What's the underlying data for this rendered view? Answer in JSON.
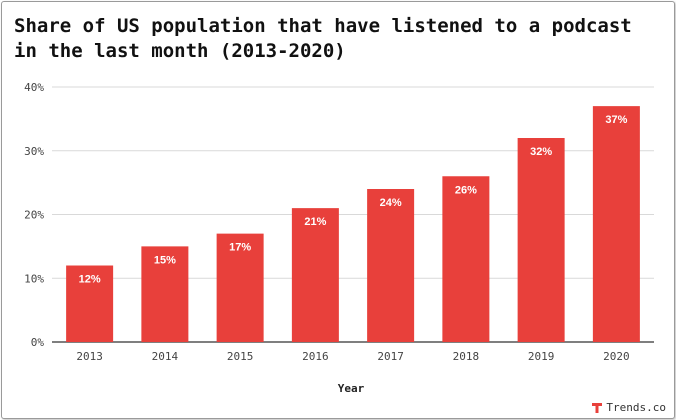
{
  "title": "Share of US population that have listened to a podcast in the last month (2013-2020)",
  "brand": {
    "name": "Trends.co",
    "logo_icon": "trends-logo-icon",
    "color": "#e8403b"
  },
  "colors": {
    "bar": "#e8403b",
    "grid": "#d9d9d9",
    "axis": "#333333"
  },
  "chart_data": {
    "type": "bar",
    "categories": [
      "2013",
      "2014",
      "2015",
      "2016",
      "2017",
      "2018",
      "2019",
      "2020"
    ],
    "values": [
      12,
      15,
      17,
      21,
      24,
      26,
      32,
      37
    ],
    "data_labels": [
      "12%",
      "15%",
      "17%",
      "21%",
      "24%",
      "26%",
      "32%",
      "37%"
    ],
    "title": "Share of US population that have listened to a podcast in the last month (2013-2020)",
    "xlabel": "Year",
    "ylabel": "",
    "ylim": [
      0,
      40
    ],
    "yticks": [
      0,
      10,
      20,
      30,
      40
    ],
    "ytick_labels": [
      "0%",
      "10%",
      "20%",
      "30%",
      "40%"
    ],
    "grid": true,
    "legend": "none"
  }
}
